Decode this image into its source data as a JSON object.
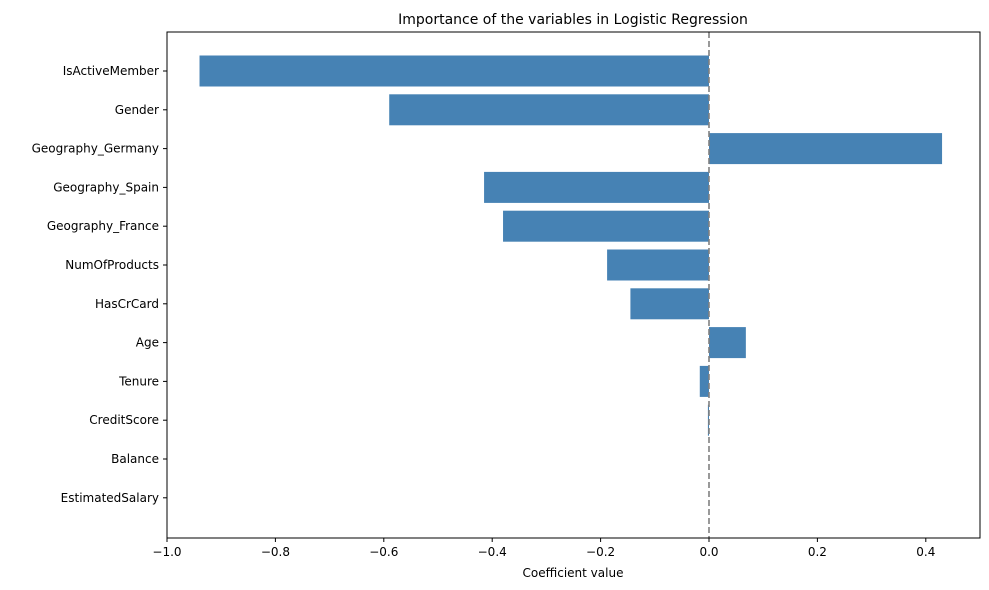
{
  "chart_data": {
    "type": "bar",
    "orientation": "horizontal",
    "title": "Importance of the variables in Logistic Regression",
    "xlabel": "Coefficient value",
    "ylabel": "",
    "categories": [
      "IsActiveMember",
      "Gender",
      "Geography_Germany",
      "Geography_Spain",
      "Geography_France",
      "NumOfProducts",
      "HasCrCard",
      "Age",
      "Tenure",
      "CreditScore",
      "Balance",
      "EstimatedSalary"
    ],
    "values": [
      -0.94,
      -0.59,
      0.43,
      -0.415,
      -0.38,
      -0.188,
      -0.145,
      0.068,
      -0.017,
      -0.002,
      0.0,
      0.0
    ],
    "xlim": [
      -1.0,
      0.5
    ],
    "xticks": [
      -1.0,
      -0.8,
      -0.6,
      -0.4,
      -0.2,
      0.0,
      0.2,
      0.4
    ],
    "xtick_labels": [
      "−1.0",
      "−0.8",
      "−0.6",
      "−0.4",
      "−0.2",
      "0.0",
      "0.2",
      "0.4"
    ],
    "reference_line": 0.0,
    "bar_color": "#4682b4",
    "reference_line_color": "#808080"
  }
}
